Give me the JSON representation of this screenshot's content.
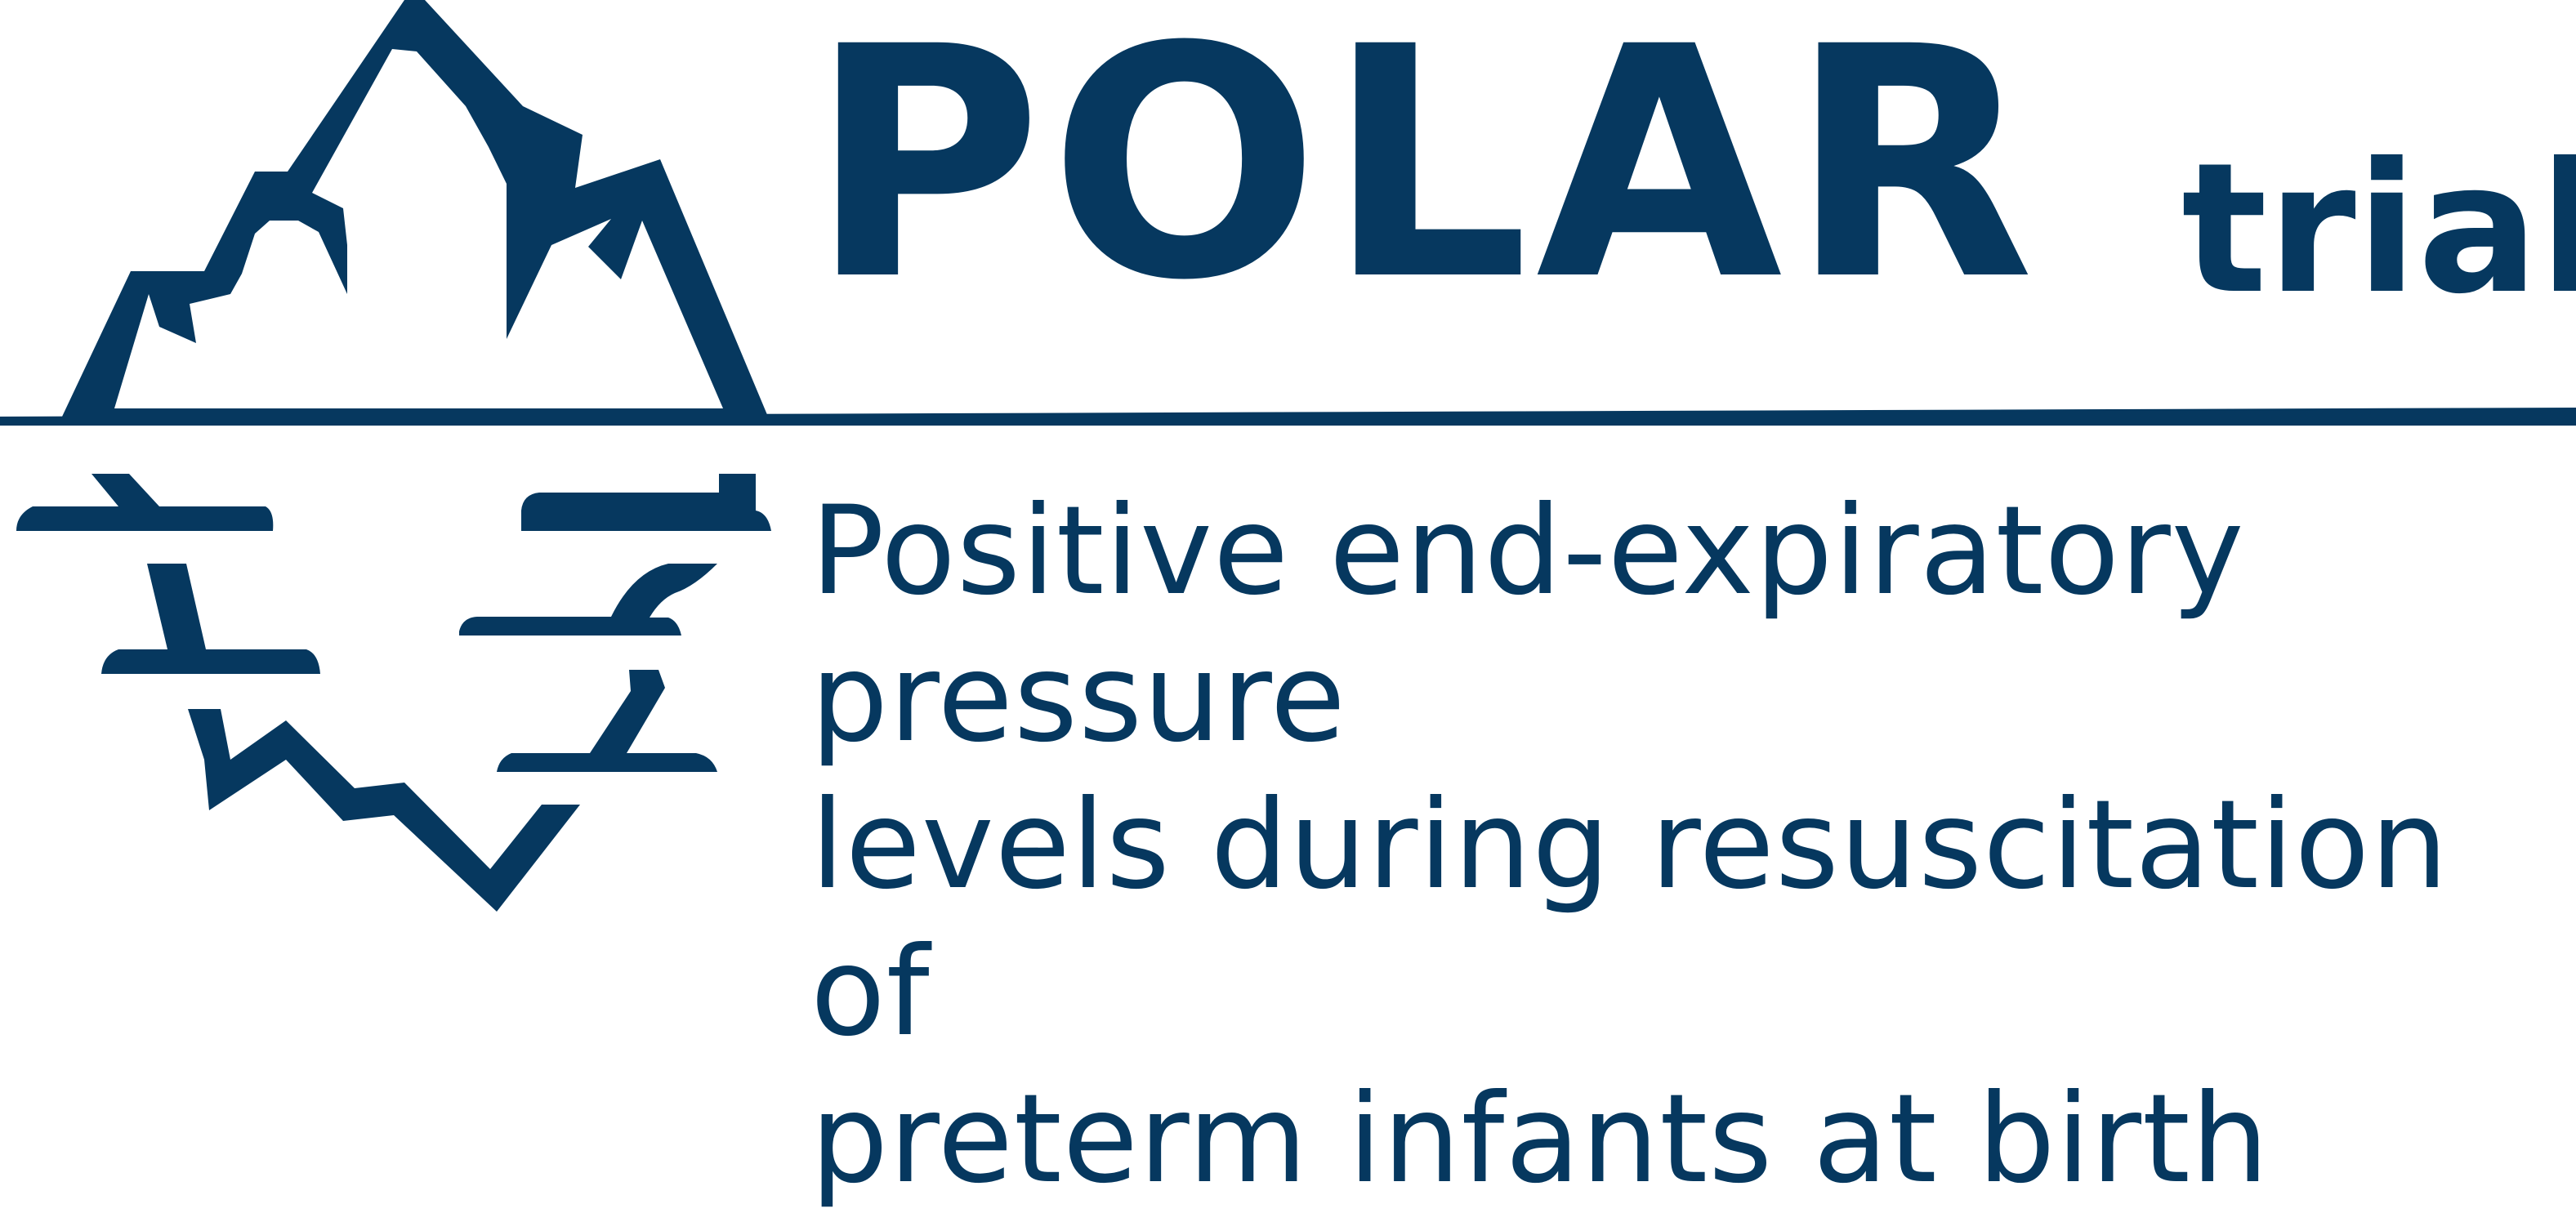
{
  "branding": {
    "title": "POLAR",
    "suffix": "trial",
    "tagline": "Positive end-expiratory pressure\nlevels during resuscitation of\npreterm infants at birth"
  },
  "colors": {
    "brand": "#06385f",
    "background": "#ffffff"
  }
}
